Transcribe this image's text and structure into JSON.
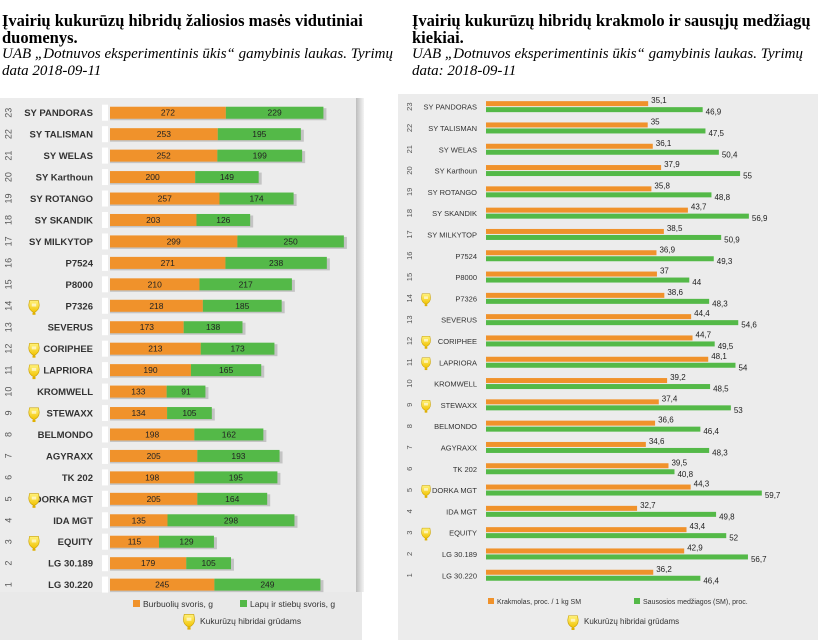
{
  "charts": [
    {
      "title_bold": "Įvairių kukurūzų hibridų žaliosios masės vidutiniai duomenys.",
      "title_sub": "UAB „Dotnuvos eksperimentinis ūkis“ gamybinis laukas. Tyrimų data 2018-09-11"
    },
    {
      "title_bold": "Įvairių kukurūzų hibridų krakmolo ir sausųjų medžiagų kiekiai.",
      "title_sub": "UAB „Dotnuvos eksperimentinis ūkis“ gamybinis laukas. Tyrimų data: 2018-09-11"
    }
  ],
  "chart_data": [
    {
      "type": "bar",
      "orientation": "horizontal",
      "stacked": true,
      "title": "Įvairių kukurūzų hibridų žaliosios masės vidutiniai duomenys.",
      "categories": [
        "SY PANDORAS",
        "SY TALISMAN",
        "SY WELAS",
        "SY Karthoun",
        "SY ROTANGO",
        "SY SKANDIK",
        "SY MILKYTOP",
        "P7524",
        "P8000",
        "P7326",
        "SEVERUS",
        "CORIPHEE",
        "LAPRIORA",
        "KROMWELL",
        "STEWAXX",
        "BELMONDO",
        "AGYRAXX",
        "TK 202",
        "DORKA MGT",
        "IDA MGT",
        "EQUITY",
        "LG 30.189",
        "LG 30.220"
      ],
      "row_numbers": [
        "23",
        "22",
        "21",
        "20",
        "19",
        "18",
        "17",
        "16",
        "15",
        "14",
        "13",
        "12",
        "11",
        "10",
        "9",
        "8",
        "7",
        "6",
        "5",
        "4",
        "3",
        "2",
        "1"
      ],
      "grain_hybrid": [
        false,
        false,
        false,
        false,
        false,
        false,
        false,
        false,
        false,
        true,
        false,
        true,
        true,
        false,
        true,
        false,
        false,
        false,
        true,
        false,
        true,
        false,
        false
      ],
      "series": [
        {
          "name": "Burbuolių svoris, g",
          "color": "#f0922b",
          "values": [
            272,
            253,
            252,
            200,
            257,
            203,
            299,
            271,
            210,
            218,
            173,
            213,
            190,
            133,
            134,
            198,
            205,
            198,
            205,
            135,
            115,
            179,
            245
          ],
          "labels": [
            "272",
            "253",
            "252",
            "200",
            "257",
            "203",
            "299",
            "271",
            "210",
            "218",
            "173",
            "213",
            "190",
            "133",
            "134",
            "198",
            "205",
            "198",
            "205",
            "135",
            "115",
            "179",
            "245"
          ]
        },
        {
          "name": "Lapų ir stiebų  svoris, g",
          "color": "#54b948",
          "values": [
            229,
            195,
            199,
            149,
            174,
            126,
            250,
            238,
            217,
            185,
            138,
            173,
            165,
            91,
            105,
            162,
            193,
            195,
            164,
            298,
            129,
            105,
            249
          ],
          "labels": [
            "229",
            "195",
            "199",
            "149",
            "174",
            "126",
            "250",
            "238",
            "217",
            "185",
            "138",
            "173",
            "165",
            "91",
            "105",
            "162",
            "193",
            "195",
            "164",
            "298",
            "129",
            "105",
            "249"
          ]
        }
      ],
      "legend_note": "Kukurūzų hibridai grūdams"
    },
    {
      "type": "bar",
      "orientation": "horizontal",
      "stacked": false,
      "title": "Įvairių kukurūzų hibridų krakmolo ir sausųjų medžiagų kiekiai.",
      "categories": [
        "SY PANDORAS",
        "SY TALISMAN",
        "SY WELAS",
        "SY Karthoun",
        "SY ROTANGO",
        "SY SKANDIK",
        "SY MILKYTOP",
        "P7524",
        "P8000",
        "P7326",
        "SEVERUS",
        "CORIPHEE",
        "LAPRIORA",
        "KROMWELL",
        "STEWAXX",
        "BELMONDO",
        "AGYRAXX",
        "TK 202",
        "DORKA MGT",
        "IDA MGT",
        "EQUITY",
        "LG 30.189",
        "LG 30.220"
      ],
      "row_numbers": [
        "23",
        "22",
        "21",
        "20",
        "19",
        "18",
        "17",
        "16",
        "15",
        "14",
        "13",
        "12",
        "11",
        "10",
        "9",
        "8",
        "7",
        "6",
        "5",
        "4",
        "3",
        "2",
        "1"
      ],
      "grain_hybrid": [
        false,
        false,
        false,
        false,
        false,
        false,
        false,
        false,
        false,
        true,
        false,
        true,
        true,
        false,
        true,
        false,
        false,
        false,
        true,
        false,
        true,
        false,
        false
      ],
      "series": [
        {
          "name": "Krakmolas,  proc. / 1 kg SM",
          "color": "#f0922b",
          "values": [
            35.1,
            35,
            36.1,
            37.9,
            35.8,
            43.7,
            38.5,
            36.9,
            37,
            38.6,
            44.4,
            44.7,
            48.1,
            39.2,
            37.4,
            36.6,
            34.6,
            39.5,
            44.3,
            32.7,
            43.4,
            42.9,
            36.2
          ],
          "labels": [
            "35,1",
            "35",
            "36,1",
            "37,9",
            "35,8",
            "43,7",
            "38,5",
            "36,9",
            "37",
            "38,6",
            "44,4",
            "44,7",
            "48,1",
            "39,2",
            "37,4",
            "36,6",
            "34,6",
            "39,5",
            "44,3",
            "32,7",
            "43,4",
            "42,9",
            "36,2"
          ]
        },
        {
          "name": "Sausosios medžiagos (SM), proc.",
          "color": "#54b948",
          "values": [
            46.9,
            47.5,
            50.4,
            55,
            48.8,
            56.9,
            50.9,
            49.3,
            44,
            48.3,
            54.6,
            49.5,
            54,
            48.5,
            53,
            46.4,
            48.3,
            40.8,
            59.7,
            49.8,
            52,
            56.7,
            46.4
          ],
          "labels": [
            "46,9",
            "47,5",
            "50,4",
            "55",
            "48,8",
            "56,9",
            "50,9",
            "49,3",
            "44",
            "48,3",
            "54,6",
            "49,5",
            "54",
            "48,5",
            "53",
            "46,4",
            "48,3",
            "40,8",
            "59,7",
            "49,8",
            "52",
            "56,7",
            "46,4"
          ]
        }
      ],
      "legend_note": "Kukurūzų hibridai grūdams"
    }
  ]
}
